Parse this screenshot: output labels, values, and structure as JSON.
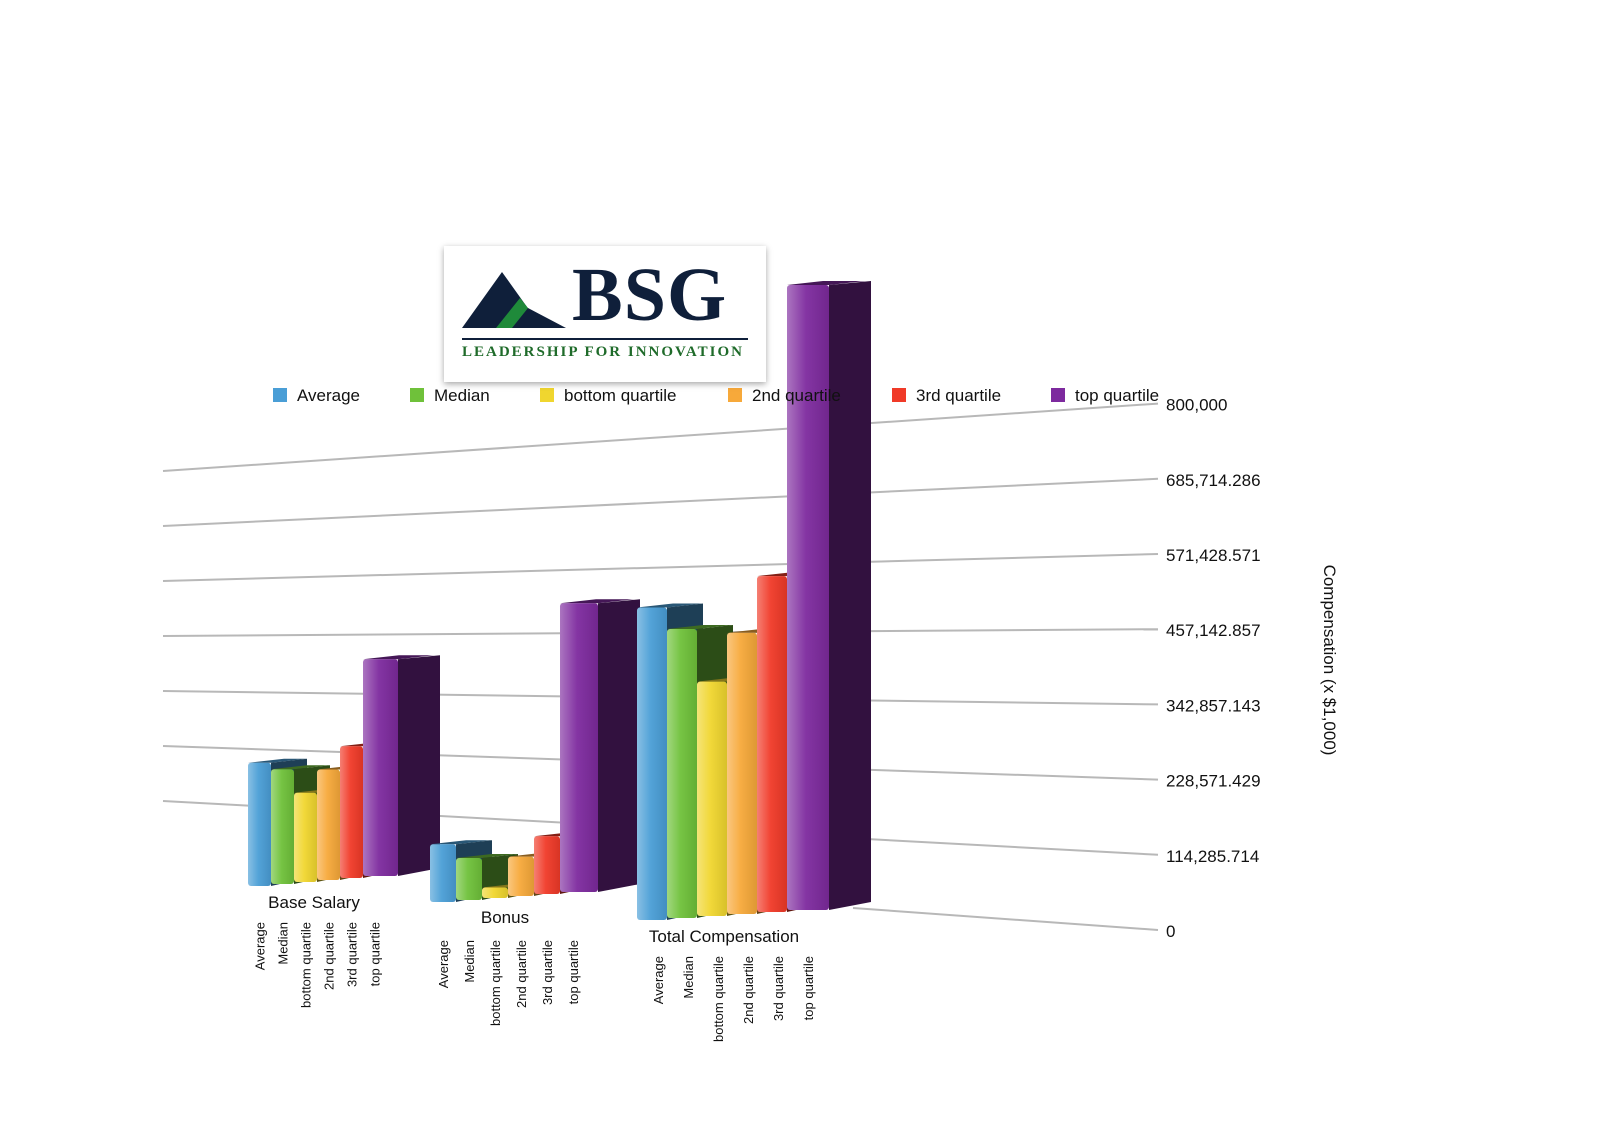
{
  "logo": {
    "text": "BSG",
    "tagline": "LEADERSHIP FOR INNOVATION"
  },
  "chart_data": {
    "type": "bar",
    "categories": [
      "Base Salary",
      "Bonus",
      "Total Compensation"
    ],
    "series": [
      {
        "name": "Average",
        "color": "#4a9ed6",
        "values": [
          290000,
          110000,
          400000
        ]
      },
      {
        "name": "Median",
        "color": "#6fc13a",
        "values": [
          270000,
          80000,
          370000
        ]
      },
      {
        "name": "bottom quartile",
        "color": "#f0d62f",
        "values": [
          210000,
          20000,
          300000
        ]
      },
      {
        "name": "2nd quartile",
        "color": "#f7a93a",
        "values": [
          260000,
          75000,
          360000
        ]
      },
      {
        "name": "3rd quartile",
        "color": "#f03a28",
        "values": [
          310000,
          110000,
          430000
        ]
      },
      {
        "name": "top quartile",
        "color": "#7d2a9e",
        "values": [
          510000,
          550000,
          800000
        ]
      }
    ],
    "ylabel": "Compensation (x $1,000)",
    "ylim": [
      0,
      800000
    ],
    "yticks": [
      "0",
      "114,285.714",
      "228,571.429",
      "342,857.143",
      "457,142.857",
      "571,428.571",
      "685,714.286",
      "800,000"
    ],
    "legend_position": "top",
    "grid": true
  }
}
